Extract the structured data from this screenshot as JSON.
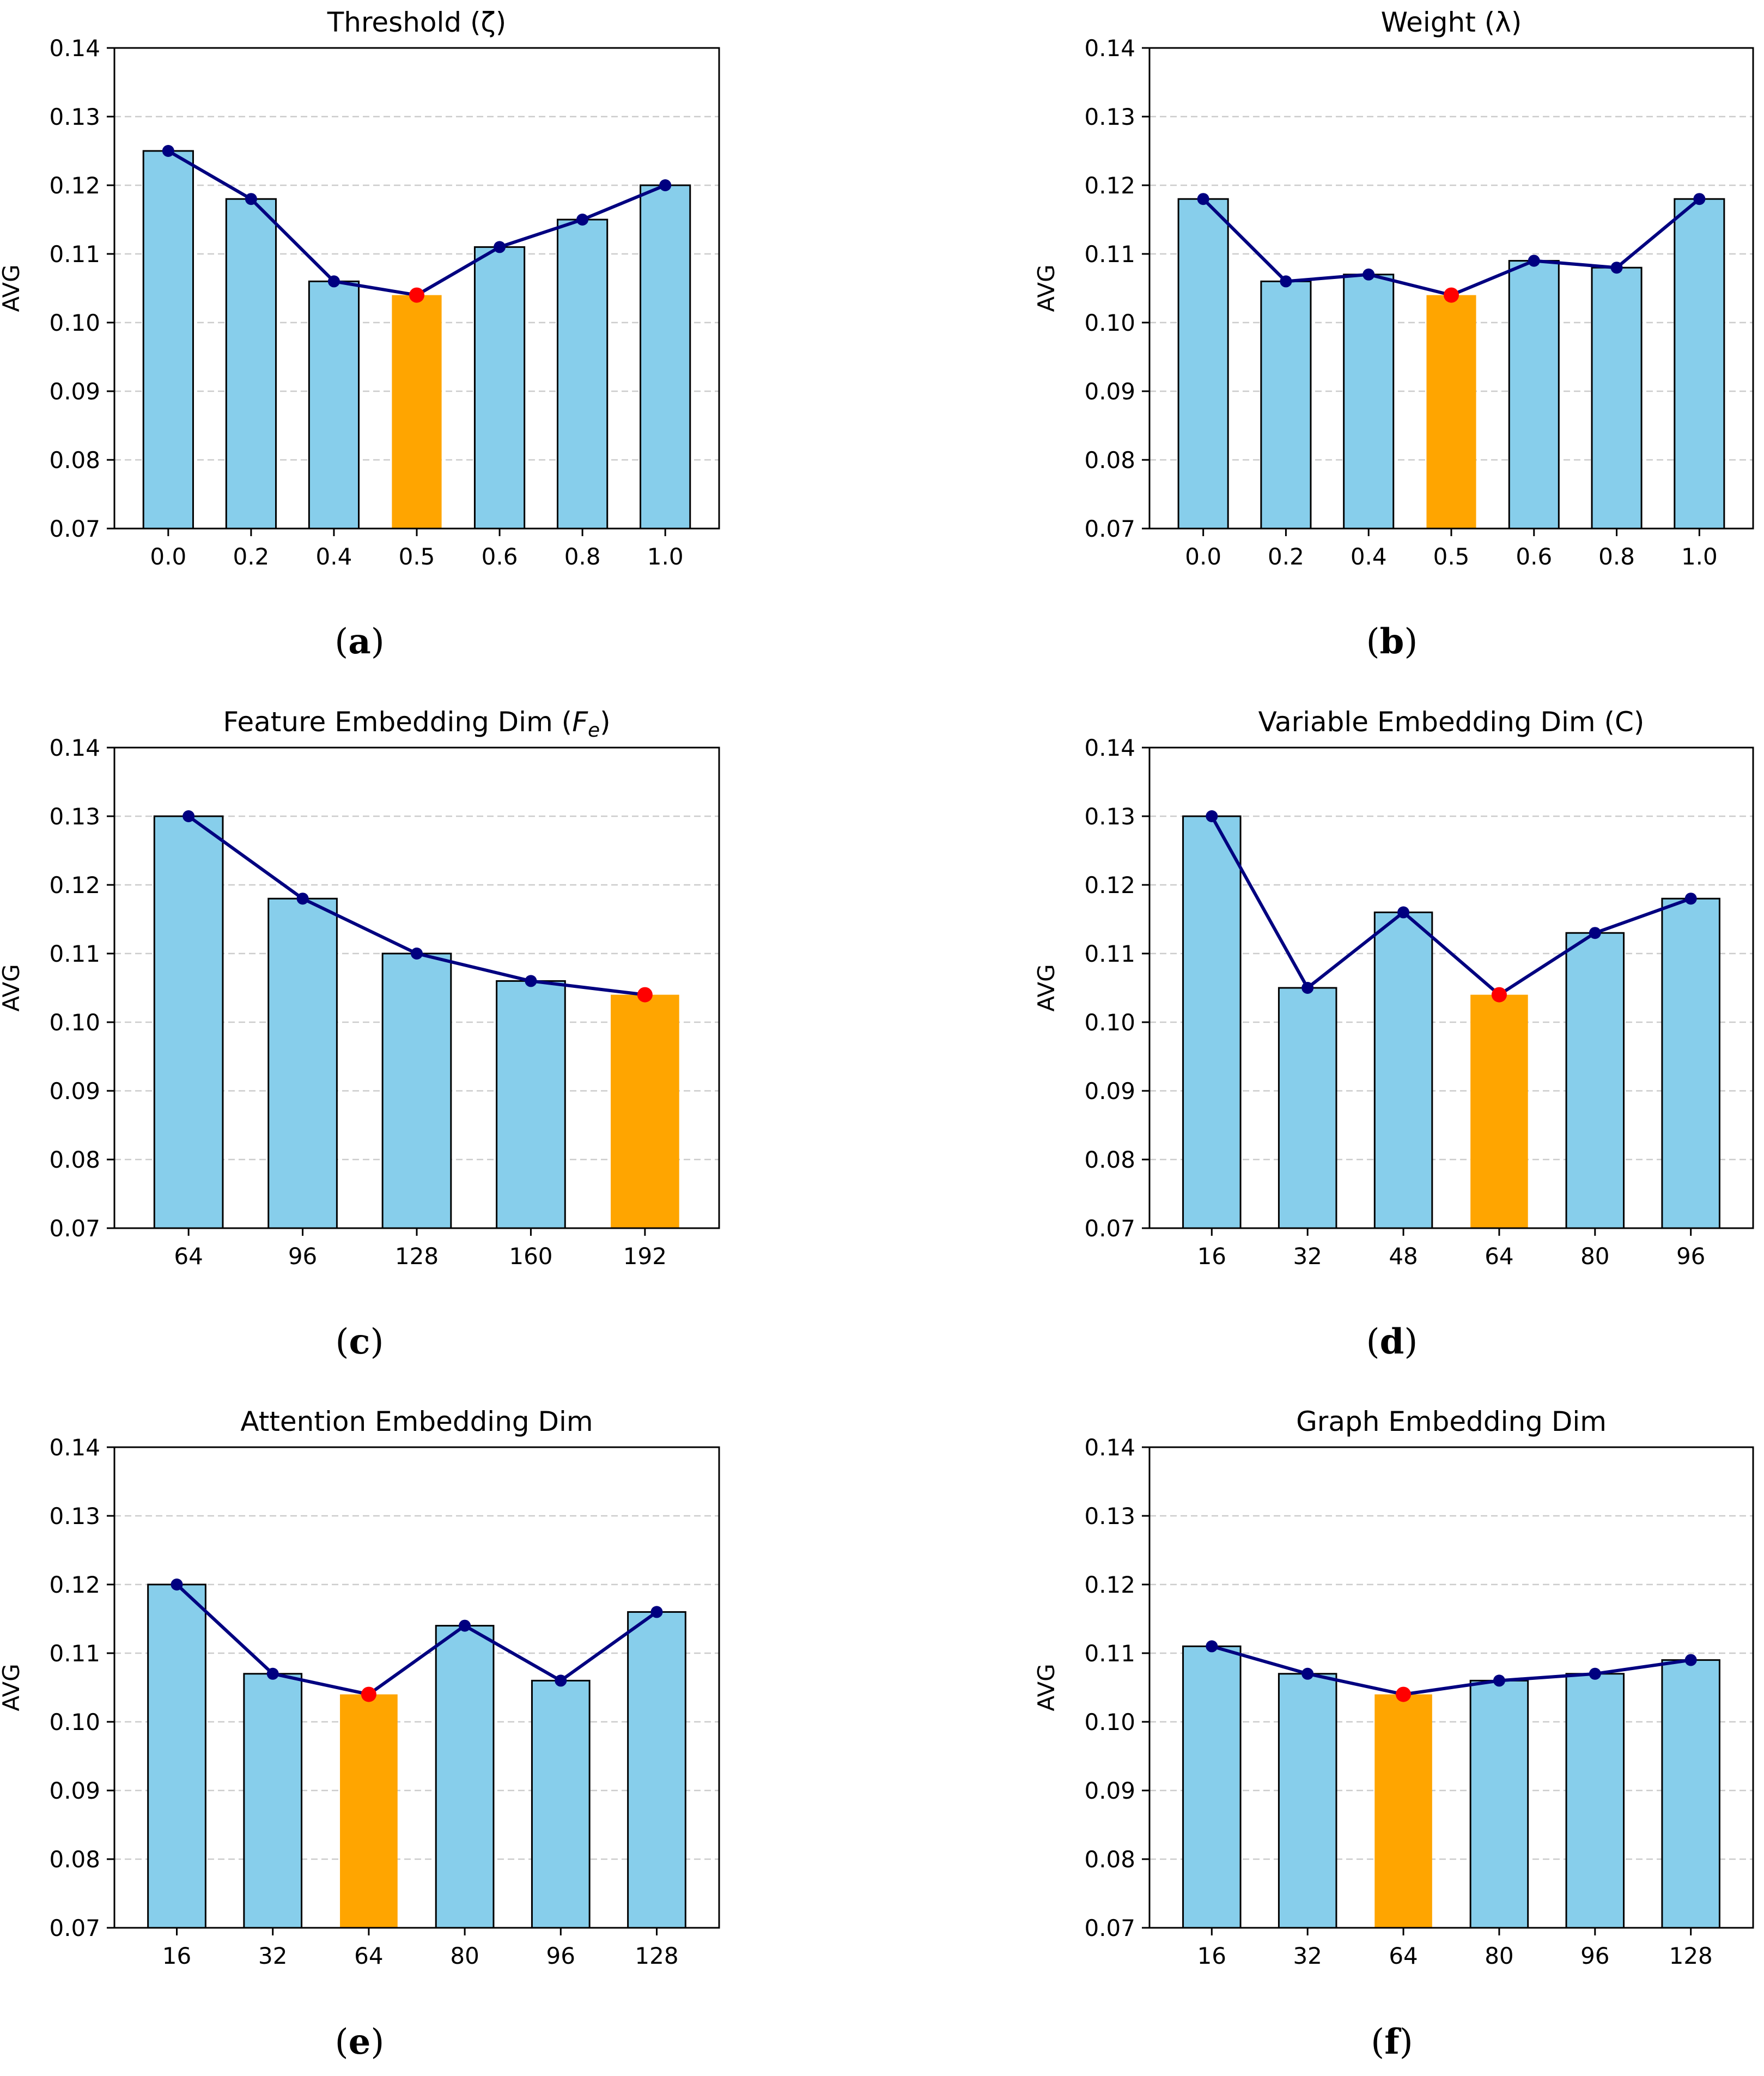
{
  "colors": {
    "bar": "#87CEEB",
    "highlight_bar": "#FFA500",
    "line": "#000080",
    "best_marker": "#FF0000",
    "grid": "#cccccc",
    "edge": "#000000"
  },
  "chart_data": [
    {
      "type": "bar",
      "panel": "(a)",
      "panel_letter": "a",
      "title": "Threshold (ζ)",
      "ylabel": "AVG",
      "ylim": [
        0.07,
        0.14
      ],
      "yticks": [
        "0.07",
        "0.08",
        "0.09",
        "0.10",
        "0.11",
        "0.12",
        "0.13",
        "0.14"
      ],
      "categories": [
        "0.0",
        "0.2",
        "0.4",
        "0.5",
        "0.6",
        "0.8",
        "1.0"
      ],
      "values": [
        0.125,
        0.118,
        0.106,
        0.104,
        0.111,
        0.115,
        0.12
      ],
      "best_index": 3,
      "overlay": "line with markers"
    },
    {
      "type": "bar",
      "panel": "(b)",
      "panel_letter": "b",
      "title": "Weight (λ)",
      "ylabel": "AVG",
      "ylim": [
        0.07,
        0.14
      ],
      "yticks": [
        "0.07",
        "0.08",
        "0.09",
        "0.10",
        "0.11",
        "0.12",
        "0.13",
        "0.14"
      ],
      "categories": [
        "0.0",
        "0.2",
        "0.4",
        "0.5",
        "0.6",
        "0.8",
        "1.0"
      ],
      "values": [
        0.118,
        0.106,
        0.107,
        0.104,
        0.109,
        0.108,
        0.118
      ],
      "best_index": 3,
      "overlay": "line with markers"
    },
    {
      "type": "bar",
      "panel": "(c)",
      "panel_letter": "c",
      "title": "Feature Embedding Dim (",
      "title_math": "F",
      "title_sub": "e",
      "title_end": ")",
      "ylabel": "AVG",
      "ylim": [
        0.07,
        0.14
      ],
      "yticks": [
        "0.07",
        "0.08",
        "0.09",
        "0.10",
        "0.11",
        "0.12",
        "0.13",
        "0.14"
      ],
      "categories": [
        "64",
        "96",
        "128",
        "160",
        "192"
      ],
      "values": [
        0.13,
        0.118,
        0.11,
        0.106,
        0.104
      ],
      "best_index": 4,
      "overlay": "line with markers"
    },
    {
      "type": "bar",
      "panel": "(d)",
      "panel_letter": "d",
      "title": "Variable Embedding Dim (C)",
      "ylabel": "AVG",
      "ylim": [
        0.07,
        0.14
      ],
      "yticks": [
        "0.07",
        "0.08",
        "0.09",
        "0.10",
        "0.11",
        "0.12",
        "0.13",
        "0.14"
      ],
      "categories": [
        "16",
        "32",
        "48",
        "64",
        "80",
        "96"
      ],
      "values": [
        0.13,
        0.105,
        0.116,
        0.104,
        0.113,
        0.118
      ],
      "best_index": 3,
      "overlay": "line with markers"
    },
    {
      "type": "bar",
      "panel": "(e)",
      "panel_letter": "e",
      "title": "Attention Embedding Dim",
      "ylabel": "AVG",
      "ylim": [
        0.07,
        0.14
      ],
      "yticks": [
        "0.07",
        "0.08",
        "0.09",
        "0.10",
        "0.11",
        "0.12",
        "0.13",
        "0.14"
      ],
      "categories": [
        "16",
        "32",
        "64",
        "80",
        "96",
        "128"
      ],
      "values": [
        0.12,
        0.107,
        0.104,
        0.114,
        0.106,
        0.116
      ],
      "best_index": 2,
      "overlay": "line with markers"
    },
    {
      "type": "bar",
      "panel": "(f)",
      "panel_letter": "f",
      "title": "Graph Embedding Dim",
      "ylabel": "AVG",
      "ylim": [
        0.07,
        0.14
      ],
      "yticks": [
        "0.07",
        "0.08",
        "0.09",
        "0.10",
        "0.11",
        "0.12",
        "0.13",
        "0.14"
      ],
      "categories": [
        "16",
        "32",
        "64",
        "80",
        "96",
        "128"
      ],
      "values": [
        0.111,
        0.107,
        0.104,
        0.106,
        0.107,
        0.109
      ],
      "best_index": 2,
      "overlay": "line with markers"
    }
  ]
}
